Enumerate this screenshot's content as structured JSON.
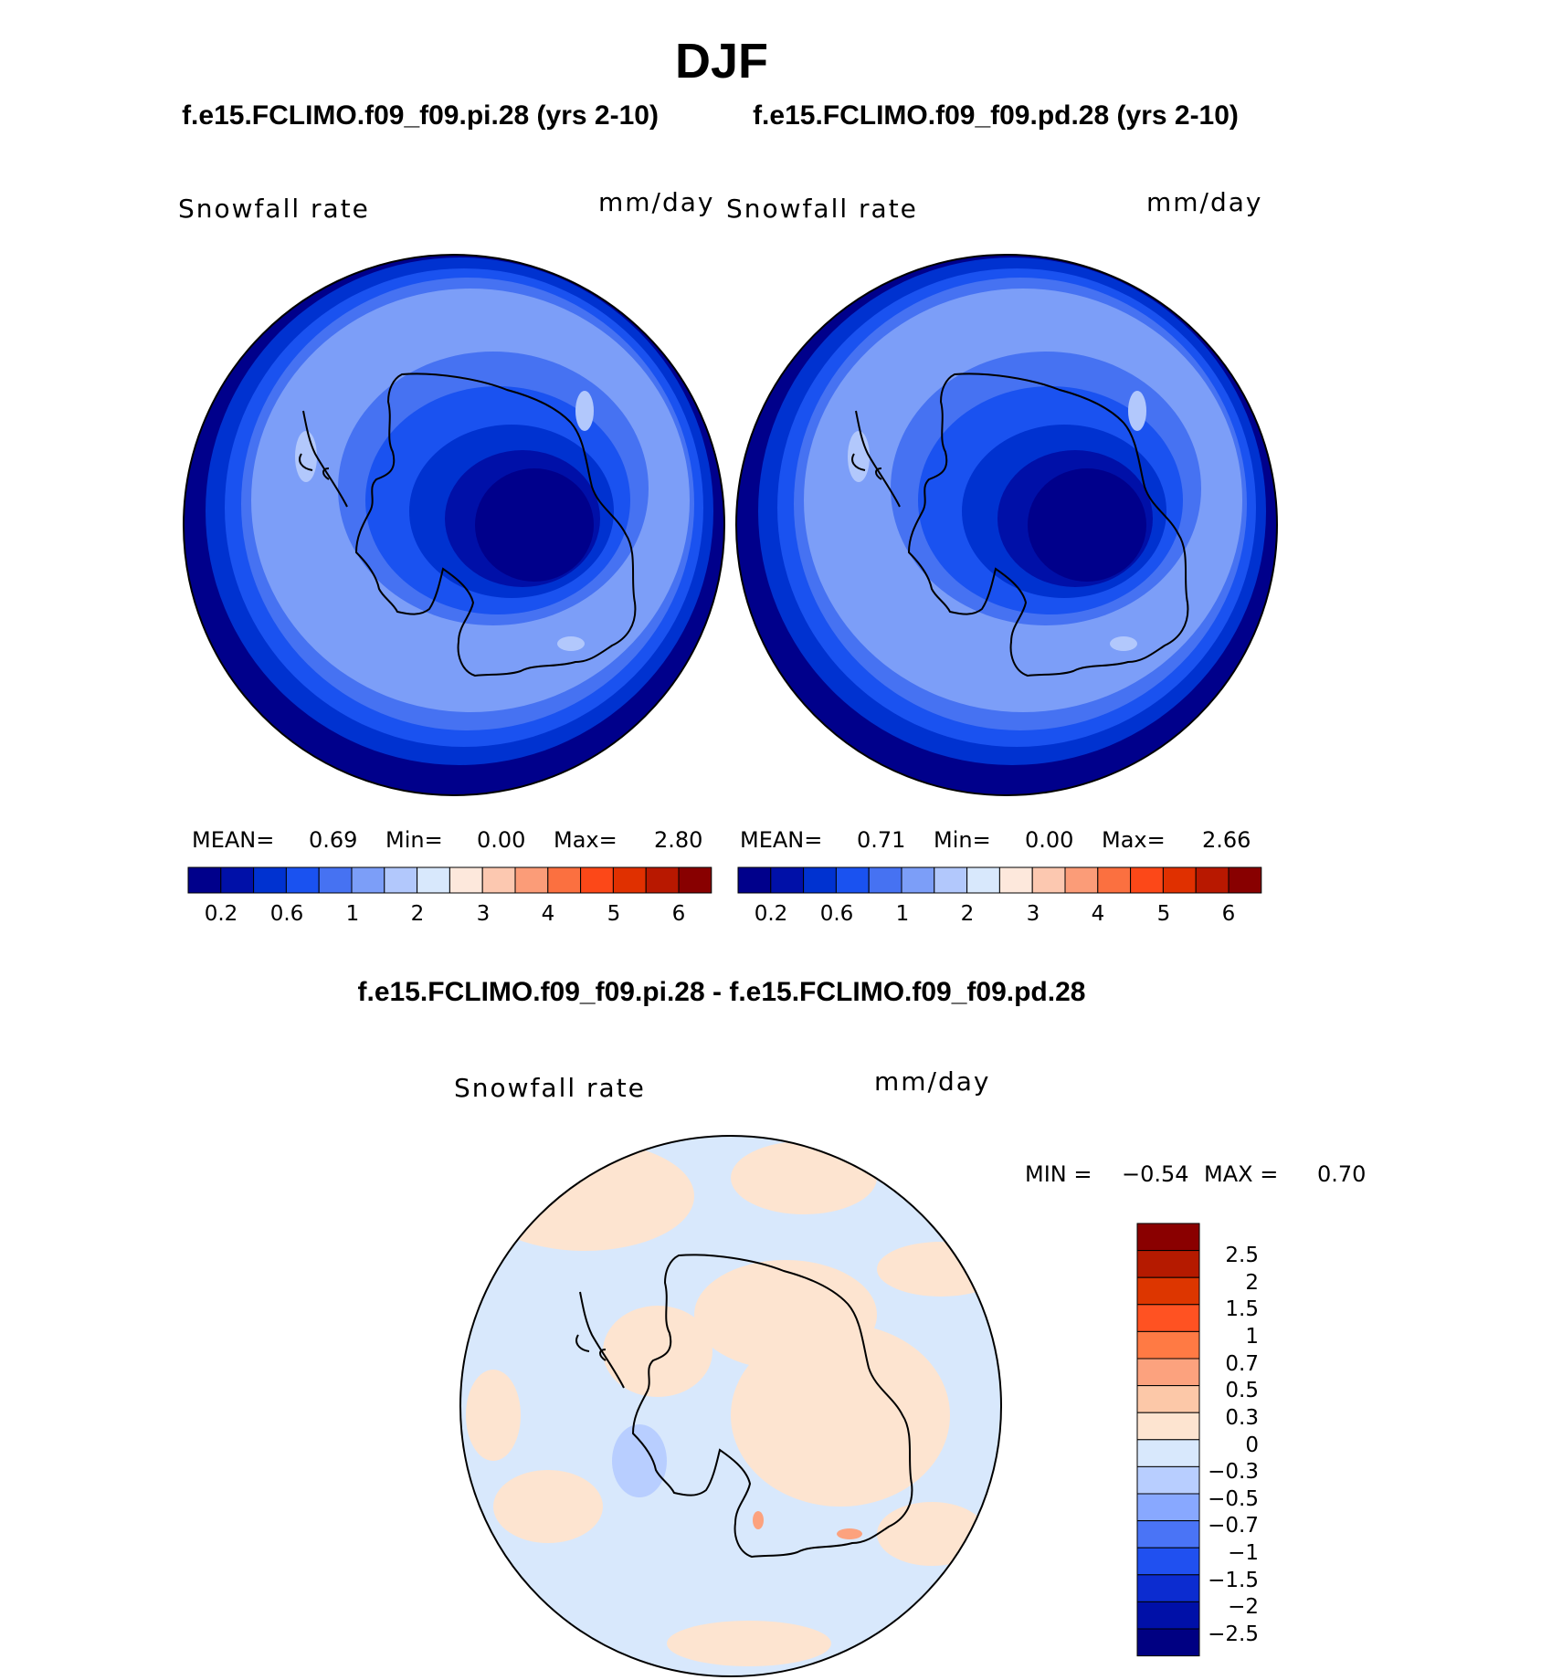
{
  "page": {
    "title": "DJF",
    "case1_title": "f.e15.FCLIMO.f09_f09.pi.28 (yrs 2-10)",
    "case2_title": "f.e15.FCLIMO.f09_f09.pd.28 (yrs 2-10)",
    "diff_title": "f.e15.FCLIMO.f09_f09.pi.28 - f.e15.FCLIMO.f09_f09.pd.28"
  },
  "panels": [
    {
      "variable": "Snowfall rate",
      "units": "mm/day",
      "stats": {
        "mean_label": "MEAN=",
        "mean": "0.69",
        "min_label": "Min=",
        "min": "0.00",
        "max_label": "Max=",
        "max": "2.80"
      }
    },
    {
      "variable": "Snowfall rate",
      "units": "mm/day",
      "stats": {
        "mean_label": "MEAN=",
        "mean": "0.71",
        "min_label": "Min=",
        "min": "0.00",
        "max_label": "Max=",
        "max": "2.66"
      }
    }
  ],
  "diff_panel": {
    "variable": "Snowfall rate",
    "units": "mm/day",
    "min_label": "MIN =",
    "min": "−0.54",
    "max_label": "MAX =",
    "max": "0.70"
  },
  "colorbar_horizontal": {
    "colors": [
      "#00008b",
      "#0010a8",
      "#0032d0",
      "#1a52f0",
      "#4672f2",
      "#7c9ef8",
      "#b2c8fc",
      "#d8e8fc",
      "#fde8dc",
      "#fcc8b0",
      "#fb9c78",
      "#fb7040",
      "#fc4818",
      "#e03000",
      "#b81800",
      "#880000"
    ],
    "tick_labels": [
      "0.2",
      "0.6",
      "1",
      "2",
      "3",
      "4",
      "5",
      "6"
    ]
  },
  "colorbar_vertical": {
    "colors_top_to_bottom": [
      "#8a0000",
      "#b51a00",
      "#dd3600",
      "#ff5222",
      "#ff7a44",
      "#fca27e",
      "#fcc8a8",
      "#fde4d0",
      "#d8e8fc",
      "#b8ceff",
      "#88a8ff",
      "#4a74f6",
      "#2050f0",
      "#0c2cd0",
      "#0010a8",
      "#000082"
    ],
    "tick_labels": [
      "2.5",
      "2",
      "1.5",
      "1",
      "0.7",
      "0.5",
      "0.3",
      "0",
      "−0.3",
      "−0.5",
      "−0.7",
      "−1",
      "−1.5",
      "−2",
      "−2.5"
    ]
  }
}
